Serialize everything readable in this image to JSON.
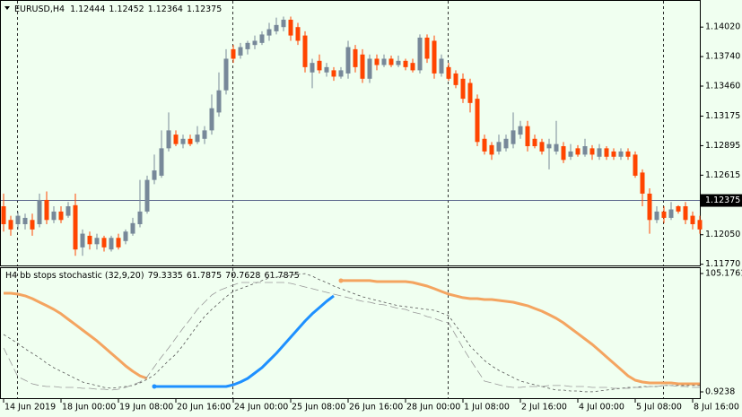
{
  "chart_data": {
    "type": "candlestick",
    "symbol": "EURUSD,H4",
    "header_values": [
      1.12444,
      1.12452,
      1.12364,
      1.12375
    ],
    "up_color": "#778899",
    "down_color": "#ff4500",
    "categories": [
      "14 Jun 2019",
      null,
      null,
      null,
      null,
      null,
      null,
      null,
      "18 Jun 00:00",
      null,
      null,
      null,
      null,
      null,
      null,
      null,
      "19 Jun 08:00",
      null,
      null,
      null,
      null,
      null,
      null,
      null,
      "20 Jun 16:00",
      null,
      null,
      null,
      null,
      null,
      null,
      null,
      "24 Jun 00:00",
      null,
      null,
      null,
      null,
      null,
      null,
      null,
      "25 Jun 08:00",
      null,
      null,
      null,
      null,
      null,
      null,
      null,
      "26 Jun 16:00",
      null,
      null,
      null,
      null,
      null,
      null,
      null,
      "28 Jun 00:00",
      null,
      null,
      null,
      null,
      null,
      null,
      null,
      "1 Jul 08:00",
      null,
      null,
      null,
      null,
      null,
      null,
      null,
      "2 Jul 16:00",
      null,
      null,
      null,
      null,
      null,
      null,
      null,
      "4 Jul 00:00",
      null,
      null,
      null,
      null,
      null,
      null,
      null,
      "5 Jul 08:00",
      null,
      null,
      null,
      null,
      null,
      null,
      null,
      "8 Jul 16:00",
      null
    ],
    "open": [
      1.1232,
      1.1219,
      1.1215,
      1.1215,
      1.1219,
      1.1215,
      1.1238,
      1.1219,
      1.1227,
      1.1223,
      1.1233,
      1.1193,
      1.1204,
      1.1196,
      1.1202,
      1.1191,
      1.1202,
      1.1199,
      1.1206,
      1.1215,
      1.1227,
      1.1257,
      1.1261,
      1.1287,
      1.13,
      1.1291,
      1.1296,
      1.1293,
      1.1296,
      1.1304,
      1.1321,
      1.1342,
      1.1381,
      1.1375,
      1.1381,
      1.1385,
      1.1387,
      1.1394,
      1.1398,
      1.1402,
      1.1409,
      1.1402,
      1.1394,
      1.1359,
      1.137,
      1.1359,
      1.1361,
      1.1355,
      1.1358,
      1.1381,
      1.1376,
      1.1353,
      1.1372,
      1.1366,
      1.1372,
      1.1366,
      1.137,
      1.1368,
      1.1361,
      1.1392,
      1.1389,
      1.1358,
      1.1364,
      1.1358,
      1.1353,
      1.1349,
      1.1334,
      1.1296,
      1.129,
      1.1284,
      1.1287,
      1.1291,
      1.13,
      1.1308,
      1.1296,
      1.1293,
      1.1287,
      1.1284,
      1.1289,
      1.1279,
      1.1287,
      1.1281,
      1.1287,
      1.1279,
      1.1287,
      1.1284,
      1.1279,
      1.1284,
      1.1281,
      1.1264,
      1.1244,
      1.1219,
      1.1227,
      1.1221,
      1.1232,
      1.1232,
      1.1223,
      1.1219
    ],
    "high": [
      1.1244,
      1.1223,
      1.1227,
      1.1225,
      1.1225,
      1.1244,
      1.1246,
      1.1232,
      1.1232,
      1.1236,
      1.1244,
      1.121,
      1.1208,
      1.1206,
      1.1204,
      1.1204,
      1.1206,
      1.121,
      1.1221,
      1.1257,
      1.1261,
      1.1281,
      1.1304,
      1.1321,
      1.1304,
      1.13,
      1.13,
      1.1308,
      1.1308,
      1.1338,
      1.1359,
      1.1381,
      1.1385,
      1.1387,
      1.1389,
      1.1394,
      1.1398,
      1.1406,
      1.1411,
      1.1412,
      1.1412,
      1.1406,
      1.1398,
      1.1372,
      1.1376,
      1.1368,
      1.1364,
      1.1364,
      1.1389,
      1.1385,
      1.1381,
      1.1376,
      1.1376,
      1.1376,
      1.1375,
      1.1375,
      1.1372,
      1.1372,
      1.1395,
      1.1395,
      1.1394,
      1.1376,
      1.1368,
      1.1361,
      1.1358,
      1.1353,
      1.1338,
      1.13,
      1.1293,
      1.13,
      1.13,
      1.1321,
      1.1313,
      1.1313,
      1.13,
      1.1296,
      1.1296,
      1.1313,
      1.1293,
      1.1291,
      1.129,
      1.1296,
      1.129,
      1.1291,
      1.1289,
      1.1287,
      1.1287,
      1.1287,
      1.1284,
      1.1267,
      1.1249,
      1.1232,
      1.1232,
      1.1236,
      1.1233,
      1.1236,
      1.1227,
      1.1223
    ],
    "low": [
      1.1208,
      1.1204,
      1.121,
      1.121,
      1.1204,
      1.1212,
      1.1215,
      1.1216,
      1.1216,
      1.1221,
      1.1185,
      1.1185,
      1.1191,
      1.1191,
      1.1189,
      1.1189,
      1.1191,
      1.1196,
      1.1204,
      1.1212,
      1.1225,
      1.1253,
      1.1259,
      1.1284,
      1.1289,
      1.1287,
      1.1289,
      1.1291,
      1.1291,
      1.13,
      1.1317,
      1.1338,
      1.1368,
      1.1372,
      1.1376,
      1.1381,
      1.1385,
      1.1389,
      1.1395,
      1.1398,
      1.1389,
      1.1385,
      1.1359,
      1.1344,
      1.1358,
      1.1355,
      1.1351,
      1.1353,
      1.1353,
      1.1359,
      1.1349,
      1.1349,
      1.1361,
      1.1364,
      1.1364,
      1.1364,
      1.1361,
      1.1359,
      1.1358,
      1.1368,
      1.1353,
      1.1355,
      1.1351,
      1.1344,
      1.133,
      1.1321,
      1.1289,
      1.1281,
      1.1276,
      1.1281,
      1.1284,
      1.1287,
      1.1296,
      1.1284,
      1.1287,
      1.1281,
      1.1267,
      1.1281,
      1.1273,
      1.1276,
      1.1279,
      1.1279,
      1.1276,
      1.1276,
      1.1276,
      1.1276,
      1.1276,
      1.1276,
      1.1259,
      1.1232,
      1.1206,
      1.1216,
      1.1216,
      1.1219,
      1.1225,
      1.1215,
      1.121,
      1.1206
    ],
    "close": [
      1.1215,
      1.121,
      1.1223,
      1.1221,
      1.121,
      1.1238,
      1.1219,
      1.1227,
      1.1219,
      1.1232,
      1.1191,
      1.1206,
      1.1196,
      1.1202,
      1.1193,
      1.1202,
      1.1193,
      1.1208,
      1.1216,
      1.1227,
      1.1257,
      1.1266,
      1.1287,
      1.1304,
      1.1291,
      1.1296,
      1.1291,
      1.13,
      1.1304,
      1.1325,
      1.1342,
      1.1372,
      1.1372,
      1.1383,
      1.1387,
      1.1389,
      1.1395,
      1.14,
      1.1404,
      1.1409,
      1.1394,
      1.1389,
      1.1364,
      1.1368,
      1.1361,
      1.1364,
      1.1355,
      1.1361,
      1.1383,
      1.1364,
      1.1353,
      1.1372,
      1.1366,
      1.1372,
      1.1366,
      1.137,
      1.1364,
      1.1361,
      1.1392,
      1.1372,
      1.1358,
      1.1372,
      1.1353,
      1.1347,
      1.1334,
      1.133,
      1.1293,
      1.1284,
      1.1281,
      1.1293,
      1.1296,
      1.1304,
      1.1308,
      1.1289,
      1.1289,
      1.1284,
      1.1291,
      1.1291,
      1.1276,
      1.1284,
      1.1281,
      1.1289,
      1.1281,
      1.1287,
      1.1279,
      1.1279,
      1.1284,
      1.1279,
      1.1261,
      1.1244,
      1.1219,
      1.1227,
      1.1221,
      1.1229,
      1.1227,
      1.1219,
      1.1215,
      1.121
    ],
    "ylim": [
      1.1175,
      1.1426
    ],
    "yticks": [
      {
        "value": 1.1402,
        "label": "1.14020"
      },
      {
        "value": 1.1374,
        "label": "1.13740"
      },
      {
        "value": 1.1346,
        "label": "1.13460"
      },
      1.13175,
      1.12895,
      1.12615,
      1.12335,
      {
        "value": 1.1205,
        "label": "1.12050"
      },
      {
        "value": 1.1177,
        "label": "1.11770"
      }
    ],
    "current_price": 1.12375,
    "indicator": {
      "title": "H4 bb stops stochastic (32,9,20)",
      "header_values": [
        79.3335,
        61.7875,
        70.7628,
        61.7875
      ],
      "ylim": [
        0.9238,
        105.1761
      ],
      "yticks": [
        105.1761,
        0.9238
      ],
      "series": [
        {
          "color": "#f4a460",
          "width": 3,
          "dash": "none",
          "values": [
            87.8,
            87.8,
            87.0,
            85.5,
            83.1,
            79.9,
            76.8,
            73.6,
            69.7,
            64.9,
            60.2,
            55.4,
            50.7,
            45.9,
            40.4,
            34.9,
            29.4,
            23.8,
            19.1,
            15.1,
            12.8,
            null,
            null,
            null,
            null,
            null,
            null,
            null,
            null,
            null,
            null,
            null,
            null,
            null,
            null,
            null,
            null,
            null,
            null,
            null,
            null,
            null,
            null,
            null,
            null,
            null,
            null,
            98.9,
            98.9,
            98.9,
            98.9,
            98.9,
            98.1,
            98.1,
            98.1,
            98.1,
            98.1,
            97.3,
            95.7,
            94.1,
            91.8,
            89.4,
            87.0,
            85.5,
            83.9,
            83.1,
            83.1,
            82.3,
            82.3,
            81.5,
            80.7,
            79.9,
            78.3,
            76.8,
            74.4,
            72.0,
            68.9,
            65.7,
            61.7,
            57.0,
            52.3,
            47.5,
            42.8,
            37.3,
            31.7,
            26.2,
            20.7,
            15.1,
            11.2,
            9.6,
            8.8,
            8.8,
            8.8,
            8.8,
            8.0,
            8.0,
            8.0,
            8.0
          ]
        },
        {
          "color": "#1e90ff",
          "width": 3,
          "dash": "none",
          "values": [
            null,
            null,
            null,
            null,
            null,
            null,
            null,
            null,
            null,
            null,
            null,
            null,
            null,
            null,
            null,
            null,
            null,
            null,
            null,
            null,
            null,
            5.7,
            5.7,
            5.7,
            5.7,
            5.7,
            5.7,
            5.7,
            5.7,
            5.7,
            5.7,
            5.7,
            7.2,
            9.6,
            12.8,
            17.5,
            22.3,
            28.6,
            34.9,
            42.0,
            49.1,
            56.2,
            63.3,
            69.7,
            75.2,
            80.7,
            85.5,
            null,
            null,
            null,
            null,
            null,
            null,
            null,
            null,
            null,
            null,
            null,
            null,
            null,
            null,
            null,
            null,
            null,
            null,
            null,
            null,
            null,
            null,
            null,
            null,
            null,
            null,
            null,
            null,
            null,
            null,
            null,
            null,
            null,
            null,
            null,
            null,
            null,
            null,
            null,
            null,
            null,
            null,
            null,
            null,
            null,
            null,
            null,
            null,
            null,
            null,
            null,
            null,
            null
          ]
        },
        {
          "color": "#555555",
          "width": 0.8,
          "dash": "3,3",
          "values": [
            51.5,
            47.5,
            43.6,
            38.8,
            34.9,
            30.9,
            26.2,
            22.2,
            19.1,
            15.9,
            12.8,
            9.6,
            8.0,
            6.5,
            4.9,
            4.1,
            4.9,
            5.7,
            6.5,
            8.8,
            12.0,
            15.9,
            22.2,
            28.6,
            34.1,
            42.0,
            50.7,
            59.4,
            67.3,
            73.6,
            79.1,
            84.7,
            89.4,
            91.8,
            94.1,
            96.5,
            98.9,
            101.3,
            102.0,
            102.8,
            103.6,
            104.4,
            105.1,
            102.8,
            99.7,
            97.3,
            94.1,
            91.8,
            89.4,
            87.0,
            84.7,
            83.1,
            81.5,
            79.9,
            78.3,
            76.8,
            76.0,
            75.2,
            74.4,
            73.6,
            72.8,
            70.4,
            68.1,
            59.4,
            50.7,
            41.2,
            34.9,
            28.6,
            23.8,
            19.9,
            16.7,
            13.6,
            10.4,
            8.8,
            7.2,
            5.7,
            4.1,
            2.5,
            2.5,
            1.7,
            1.7,
            1.0,
            1.0,
            1.7,
            2.5,
            3.3,
            4.1,
            4.9,
            4.9,
            5.7,
            5.7,
            5.7,
            6.5,
            6.5,
            6.5,
            6.5,
            6.5,
            6.5
          ]
        },
        {
          "color": "#999999",
          "width": 0.8,
          "dash": "9,4",
          "values": [
            39.6,
            27.0,
            14.3,
            11.2,
            8.0,
            6.5,
            5.7,
            5.7,
            4.9,
            4.9,
            4.9,
            4.1,
            4.1,
            3.3,
            3.3,
            2.5,
            3.3,
            4.9,
            7.2,
            9.6,
            14.3,
            23.0,
            31.7,
            39.6,
            48.3,
            57.0,
            64.9,
            73.6,
            79.9,
            86.2,
            90.2,
            92.6,
            95.0,
            97.3,
            97.3,
            97.3,
            97.3,
            97.3,
            97.3,
            97.3,
            96.5,
            95.0,
            93.3,
            91.8,
            90.2,
            88.6,
            87.0,
            85.5,
            83.9,
            82.3,
            80.7,
            79.9,
            78.3,
            77.6,
            76.0,
            74.4,
            73.6,
            71.2,
            69.7,
            67.3,
            65.7,
            63.3,
            61.7,
            50.7,
            39.6,
            29.4,
            19.9,
            10.4,
            8.8,
            7.2,
            5.7,
            4.9,
            4.9,
            5.7,
            5.7,
            5.7,
            6.5,
            6.5,
            6.5,
            5.7,
            5.7,
            5.7,
            4.9,
            4.9,
            4.9,
            4.1,
            4.1,
            4.1,
            4.9,
            4.9,
            5.7,
            5.7,
            6.5,
            6.5,
            5.7,
            5.7,
            4.9,
            4.9
          ]
        }
      ]
    }
  }
}
